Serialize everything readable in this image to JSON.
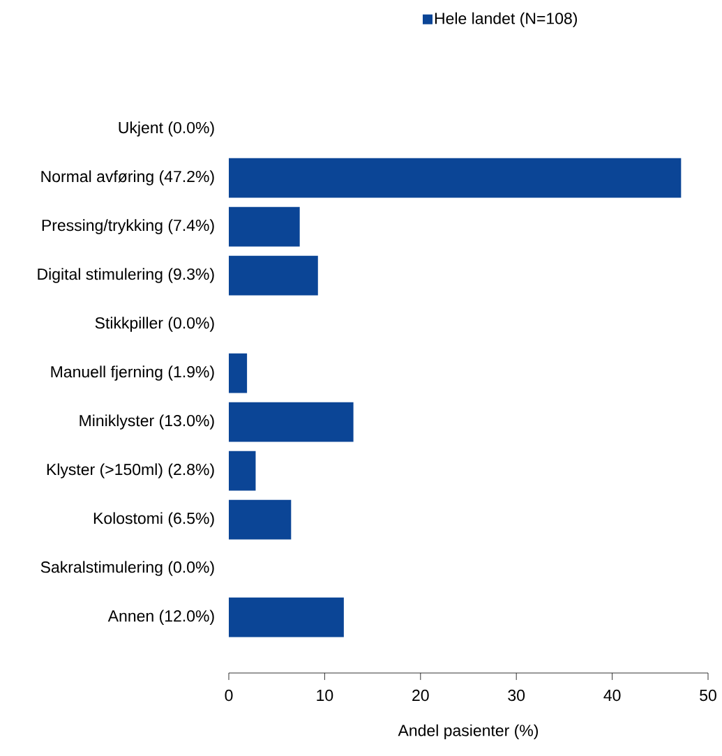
{
  "chart_data": {
    "type": "bar",
    "orientation": "horizontal",
    "categories": [
      "Ukjent (0.0%)",
      "Normal avføring (47.2%)",
      "Pressing/trykking (7.4%)",
      "Digital stimulering (9.3%)",
      "Stikkpiller (0.0%)",
      "Manuell fjerning (1.9%)",
      "Miniklyster (13.0%)",
      "Klyster (>150ml) (2.8%)",
      "Kolostomi (6.5%)",
      "Sakralstimulering (0.0%)",
      "Annen (12.0%)"
    ],
    "series": [
      {
        "name": "Hele landet (N=108)",
        "color": "#0b4596",
        "values": [
          0.0,
          47.2,
          7.4,
          9.3,
          0.0,
          1.9,
          13.0,
          2.8,
          6.5,
          0.0,
          12.0
        ]
      }
    ],
    "xlabel": "Andel pasienter (%)",
    "xlim": [
      0,
      50
    ],
    "xticks": [
      0,
      10,
      20,
      30,
      40,
      50
    ],
    "legend": "top"
  }
}
